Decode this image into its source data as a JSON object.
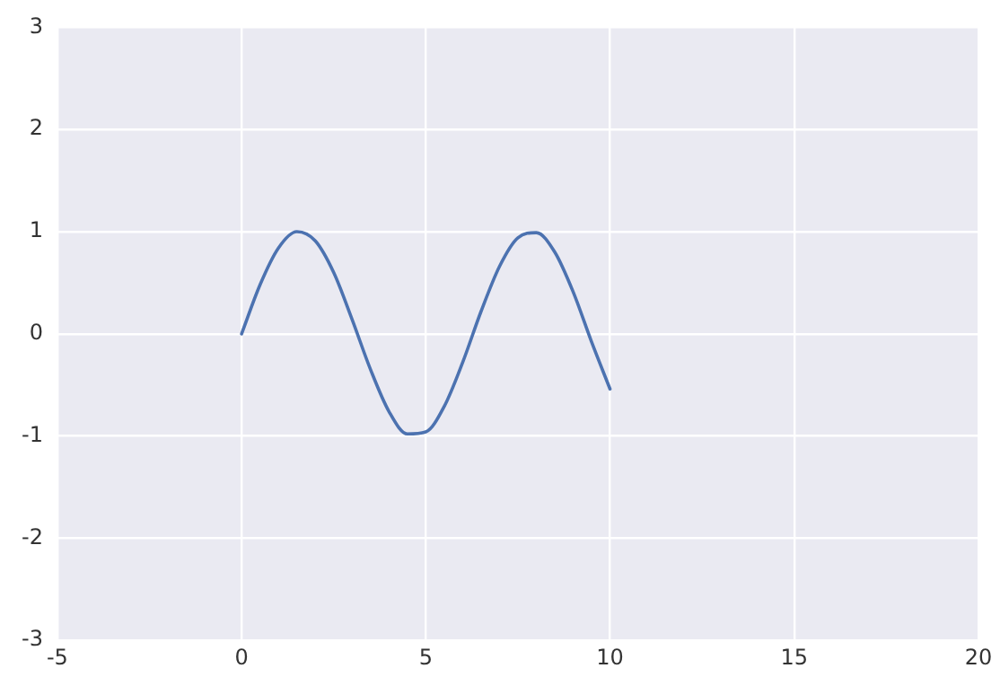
{
  "chart_data": {
    "type": "line",
    "x": [
      0,
      0.5,
      1,
      1.5,
      2,
      2.5,
      3,
      3.5,
      4,
      4.5,
      5,
      5.5,
      6,
      6.5,
      7,
      7.5,
      8,
      8.5,
      9,
      9.5,
      10
    ],
    "series": [
      {
        "color": "#4c72b0",
        "values": [
          0,
          0.48,
          0.84,
          1.0,
          0.91,
          0.6,
          0.14,
          -0.35,
          -0.76,
          -0.98,
          -0.96,
          -0.71,
          -0.28,
          0.22,
          0.66,
          0.94,
          0.99,
          0.8,
          0.41,
          -0.08,
          -0.54
        ]
      }
    ],
    "xlim": [
      -5,
      20
    ],
    "xticks": [
      -5,
      0,
      5,
      10,
      15,
      20
    ],
    "ylim": [
      -3,
      3
    ],
    "yticks": [
      -3,
      -2,
      -1,
      0,
      1,
      2,
      3
    ],
    "grid": true,
    "legend": false,
    "marker": "none",
    "line_style": "solid"
  }
}
